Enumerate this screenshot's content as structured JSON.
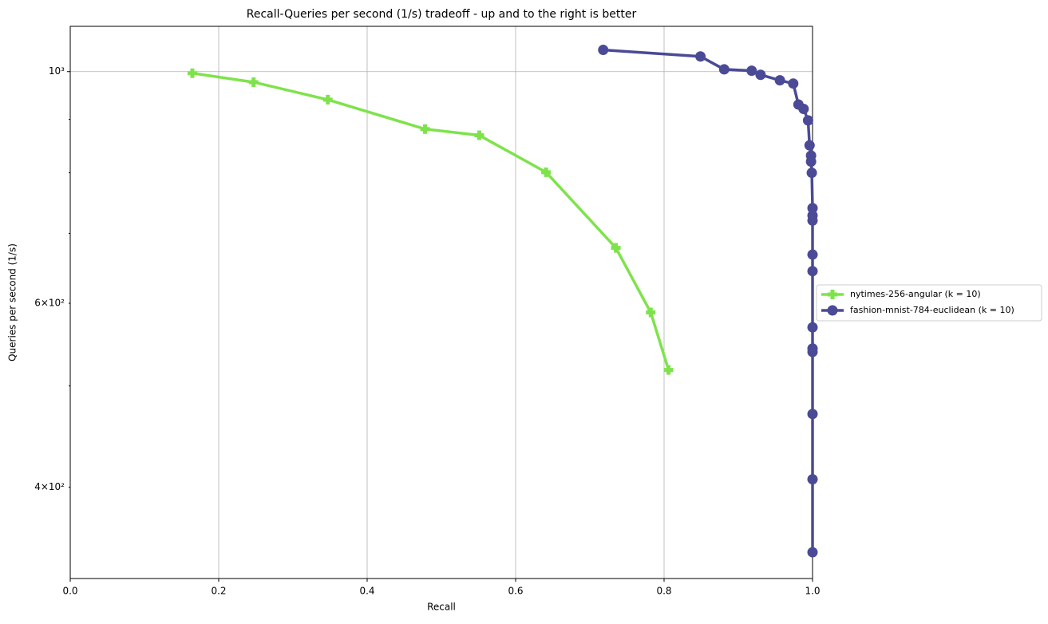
{
  "chart_data": {
    "type": "line",
    "title": "Recall-Queries per second (1/s) tradeoff - up and to the right is better",
    "x_label": "Recall",
    "y_label": "Queries per second (1/s)",
    "xlim": [
      0,
      1
    ],
    "xticks": [
      {
        "value": 0,
        "label": "0.0"
      },
      0.2,
      0.4,
      0.6,
      0.8,
      {
        "value": 1,
        "label": "1.0"
      }
    ],
    "ylim": [
      327,
      1105
    ],
    "y_log": true,
    "yticks": [
      {
        "value": 1000,
        "label": "10³"
      }
    ],
    "yminorticks": [
      {
        "value": 400,
        "label": "4×10²"
      },
      500,
      {
        "value": 600,
        "label": "6×10²"
      },
      700,
      800,
      900
    ],
    "grid": true,
    "legend": "outside-right",
    "series": [
      {
        "name": "nytimes-256-angular (k = 10)",
        "color": "#7ee34b",
        "marker": "plus",
        "x": [
          0.1645,
          0.247,
          0.347,
          0.478,
          0.551,
          0.641,
          0.735,
          0.782,
          0.806
        ],
        "values": [
          996.5,
          977,
          940,
          881,
          869,
          801,
          678,
          588,
          518
        ]
      },
      {
        "name": "fashion-mnist-784-euclidean (k = 10)",
        "color": "#4b4a96",
        "marker": "circle",
        "x": [
          0.718,
          0.849,
          0.881,
          0.918,
          0.93,
          0.956,
          0.974,
          0.981,
          0.988,
          0.994,
          0.996,
          0.998,
          0.998,
          0.999,
          1.0,
          1.0,
          1.0,
          1.0,
          1.0,
          1.0,
          1.0,
          1.0,
          1.0,
          1.0,
          1.0
        ],
        "values": [
          1049,
          1034,
          1005,
          1002,
          993,
          981,
          974,
          930,
          921,
          898,
          850,
          831,
          820,
          800,
          740,
          728,
          720,
          668,
          644,
          569,
          543,
          539,
          470,
          407,
          346.5
        ]
      }
    ]
  }
}
